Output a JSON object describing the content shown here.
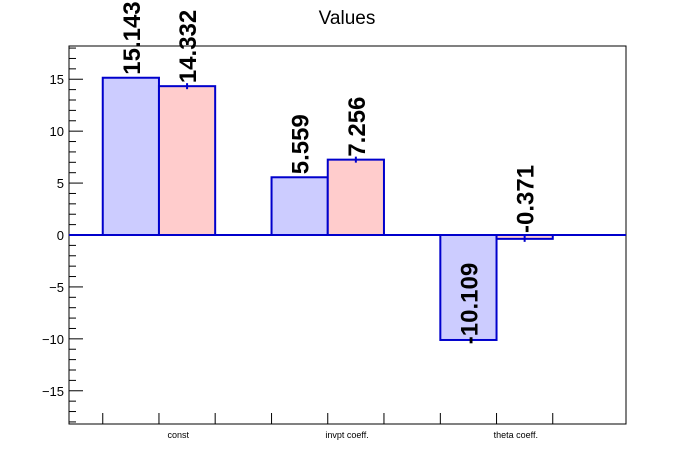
{
  "chart_data": {
    "type": "bar",
    "title": "Values",
    "categories": [
      "const",
      "invpt coeff.",
      "theta coeff."
    ],
    "series": [
      {
        "values": [
          15.143,
          5.559,
          -10.109
        ],
        "color": "#ccccff",
        "edge_color": "#0000cc"
      },
      {
        "values": [
          14.332,
          7.256,
          -0.371
        ],
        "color": "#ffcccc",
        "edge_color": "#0000cc"
      }
    ],
    "data_labels": [
      [
        "15.143",
        "5.559",
        "-10.109"
      ],
      [
        "14.332",
        "7.256",
        "-0.371"
      ]
    ],
    "ylim": [
      -18.2,
      18.2
    ],
    "yticks": [
      -15,
      -10,
      -5,
      0,
      5,
      10,
      15
    ],
    "ytick_labels": [
      "−15",
      "−10",
      "−5",
      "0",
      "5",
      "10",
      "15"
    ],
    "xlabel": "",
    "ylabel": "",
    "grid": false,
    "legend": "none"
  }
}
